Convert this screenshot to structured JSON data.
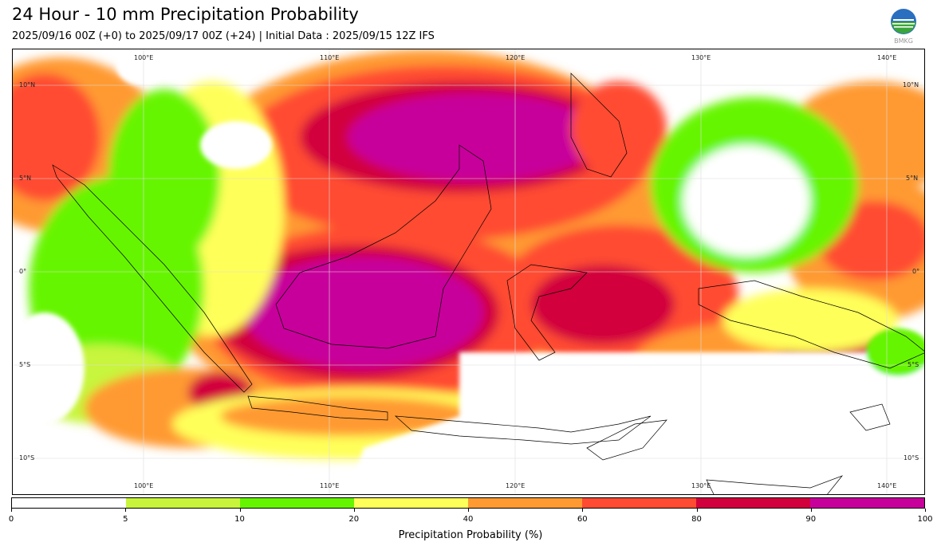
{
  "header": {
    "title": "24 Hour - 10 mm Precipitation Probability",
    "subtitle": "2025/09/16 00Z (+0) to 2025/09/17 00Z (+24) | Initial Data : 2025/09/15 12Z IFS"
  },
  "logo": {
    "icon": "bmkg-logo-icon",
    "text": "BMKG"
  },
  "map": {
    "lon_labels": [
      "100°E",
      "110°E",
      "120°E",
      "130°E",
      "140°E"
    ],
    "lat_labels": [
      "10°N",
      "5°N",
      "0°",
      "5°S",
      "10°S"
    ]
  },
  "colorbar": {
    "label": "Precipitation Probability (%)",
    "ticks": [
      "0",
      "5",
      "10",
      "20",
      "40",
      "60",
      "80",
      "90",
      "100"
    ],
    "colors": [
      "#ffffff",
      "#c8f53c",
      "#66f500",
      "#ffff5a",
      "#ff9a32",
      "#ff4b32",
      "#d2003c",
      "#c8009b"
    ]
  }
}
